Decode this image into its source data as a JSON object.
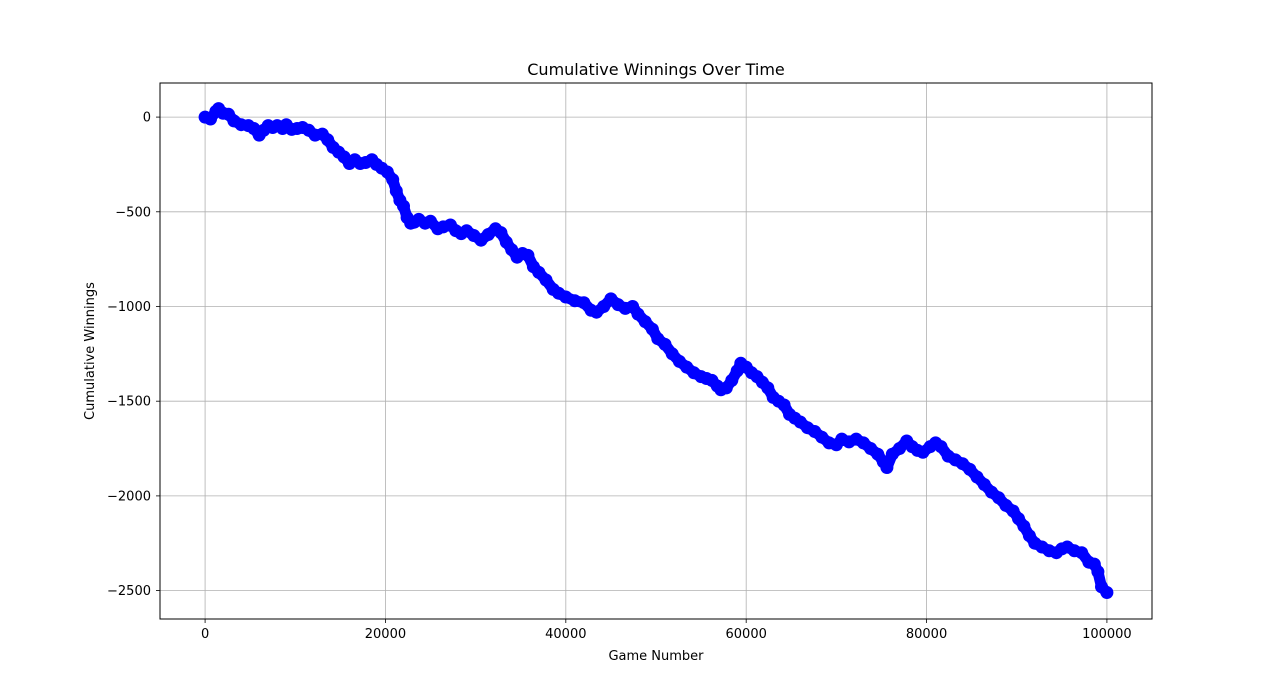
{
  "chart_data": {
    "type": "line",
    "title": "Cumulative Winnings Over Time",
    "xlabel": "Game Number",
    "ylabel": "Cumulative Winnings",
    "xlim": [
      -5000,
      105000
    ],
    "ylim": [
      -2650,
      180
    ],
    "xticks": [
      0,
      20000,
      40000,
      60000,
      80000,
      100000
    ],
    "xtick_labels": [
      "0",
      "20000",
      "40000",
      "60000",
      "80000",
      "100000"
    ],
    "yticks": [
      0,
      -500,
      -1000,
      -1500,
      -2000,
      -2500
    ],
    "ytick_labels": [
      "0",
      "−500",
      "−1000",
      "−1500",
      "−2000",
      "−2500"
    ],
    "grid": true,
    "marker": "circle",
    "colors": {
      "series": "#0000ff",
      "grid": "#b0b0b0",
      "axes": "#000000"
    },
    "series": [
      {
        "x": [
          0,
          600,
          1200,
          1500,
          2000,
          2600,
          3200,
          4000,
          4800,
          5400,
          6000,
          6500,
          7000,
          7500,
          8000,
          8600,
          9000,
          9600,
          10200,
          10800,
          11500,
          12200,
          13000,
          13600,
          14200,
          14800,
          15400,
          16000,
          16600,
          17200,
          17800,
          18500,
          19000,
          19600,
          20200,
          20800,
          21200,
          21600,
          22000,
          22400,
          22800,
          23200,
          23700,
          24400,
          25000,
          25800,
          26400,
          27200,
          27800,
          28400,
          29000,
          29800,
          30600,
          31400,
          32200,
          32800,
          33400,
          34000,
          34600,
          35200,
          35800,
          36400,
          37000,
          37800,
          38600,
          39200,
          40000,
          41000,
          42000,
          42800,
          43400,
          44200,
          45000,
          45800,
          46600,
          47400,
          48000,
          48800,
          49600,
          50200,
          51000,
          51800,
          52600,
          53400,
          54200,
          55000,
          55600,
          56200,
          56800,
          57200,
          57800,
          58400,
          59000,
          59400,
          60000,
          60600,
          61200,
          61800,
          62400,
          63000,
          63600,
          64200,
          64800,
          65400,
          66000,
          66800,
          67600,
          68400,
          69200,
          70000,
          70600,
          71400,
          72200,
          73000,
          73800,
          74600,
          75200,
          75600,
          76200,
          77000,
          77800,
          78400,
          79000,
          79600,
          80400,
          81000,
          81600,
          82400,
          83200,
          84000,
          84800,
          85600,
          86400,
          87200,
          88000,
          88800,
          89600,
          90200,
          90800,
          91400,
          92000,
          92800,
          93600,
          94400,
          95000,
          95600,
          96400,
          97200,
          98000,
          98600,
          99000,
          99400,
          100000
        ],
        "y": [
          0,
          -10,
          30,
          45,
          20,
          15,
          -20,
          -40,
          -45,
          -60,
          -95,
          -70,
          -45,
          -55,
          -45,
          -60,
          -40,
          -65,
          -60,
          -55,
          -70,
          -95,
          -90,
          -120,
          -160,
          -185,
          -210,
          -245,
          -225,
          -245,
          -240,
          -225,
          -250,
          -270,
          -290,
          -330,
          -390,
          -440,
          -470,
          -530,
          -560,
          -555,
          -540,
          -560,
          -550,
          -590,
          -580,
          -570,
          -600,
          -615,
          -600,
          -625,
          -650,
          -620,
          -590,
          -610,
          -660,
          -700,
          -740,
          -720,
          -730,
          -790,
          -820,
          -860,
          -910,
          -930,
          -950,
          -970,
          -980,
          -1020,
          -1030,
          -1000,
          -960,
          -990,
          -1010,
          -1000,
          -1040,
          -1080,
          -1120,
          -1170,
          -1200,
          -1250,
          -1290,
          -1320,
          -1350,
          -1370,
          -1380,
          -1390,
          -1420,
          -1440,
          -1430,
          -1390,
          -1340,
          -1300,
          -1320,
          -1350,
          -1370,
          -1400,
          -1430,
          -1480,
          -1500,
          -1520,
          -1570,
          -1590,
          -1610,
          -1640,
          -1660,
          -1690,
          -1720,
          -1730,
          -1700,
          -1715,
          -1700,
          -1720,
          -1750,
          -1780,
          -1820,
          -1850,
          -1780,
          -1750,
          -1710,
          -1740,
          -1760,
          -1770,
          -1740,
          -1720,
          -1740,
          -1790,
          -1810,
          -1830,
          -1860,
          -1900,
          -1940,
          -1980,
          -2010,
          -2050,
          -2080,
          -2120,
          -2160,
          -2210,
          -2250,
          -2270,
          -2290,
          -2300,
          -2280,
          -2270,
          -2290,
          -2300,
          -2350,
          -2360,
          -2400,
          -2480,
          -2510
        ]
      }
    ]
  }
}
